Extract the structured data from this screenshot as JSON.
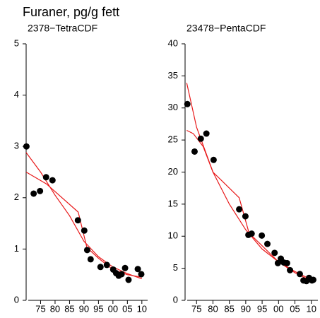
{
  "title": "Furaner, pg/g fett",
  "chart_data": [
    {
      "type": "scatter",
      "title": "2378−TetraCDF",
      "color": "#000000",
      "x": [
        1970.1,
        1972.6,
        1974.8,
        1976.9,
        1979.1,
        1987.9,
        1990.1,
        1991.1,
        1992.3,
        1995.7,
        1997.9,
        2000.1,
        2001.1,
        2002.0,
        2003.0,
        2004.2,
        2005.4,
        2008.6,
        2009.8
      ],
      "values": [
        3.0,
        2.08,
        2.13,
        2.4,
        2.34,
        1.56,
        1.36,
        0.98,
        0.8,
        0.65,
        0.69,
        0.6,
        0.53,
        0.48,
        0.51,
        0.63,
        0.4,
        0.61,
        0.51
      ],
      "lines": [
        {
          "color": "#e8191a",
          "x": [
            1970,
            1975,
            1980,
            1985,
            1990,
            1995,
            2000,
            2005,
            2010
          ],
          "values": [
            2.88,
            2.5,
            2.05,
            1.65,
            1.15,
            0.85,
            0.65,
            0.52,
            0.42
          ]
        },
        {
          "color": "#e8191a",
          "x": [
            1970,
            1977,
            1988,
            1991,
            1995,
            2000,
            2005,
            2010
          ],
          "values": [
            2.5,
            2.27,
            1.72,
            1.03,
            0.82,
            0.6,
            0.5,
            0.45
          ]
        }
      ],
      "xlim": [
        1970,
        2012
      ],
      "ylim": [
        0,
        5
      ],
      "xticks": [
        {
          "value": 1975,
          "label": "75"
        },
        {
          "value": 1980,
          "label": "80"
        },
        {
          "value": 1985,
          "label": "85"
        },
        {
          "value": 1990,
          "label": "90"
        },
        {
          "value": 1995,
          "label": "95"
        },
        {
          "value": 2000,
          "label": "00"
        },
        {
          "value": 2005,
          "label": "05"
        },
        {
          "value": 2010,
          "label": "10"
        }
      ],
      "yticks": [
        0,
        1,
        2,
        3,
        4,
        5
      ]
    },
    {
      "type": "scatter",
      "title": "23478−PentaCDF",
      "color": "#000000",
      "x": [
        1972.2,
        1974.4,
        1976.3,
        1978.0,
        1980.2,
        1988.0,
        1989.9,
        1990.8,
        1991.8,
        1994.9,
        1996.6,
        1998.8,
        1999.8,
        2000.7,
        2001.6,
        2002.6,
        2003.5,
        2006.5,
        2007.6,
        2008.5,
        2009.3,
        2010.2,
        2010.6
      ],
      "values": [
        30.6,
        23.2,
        25.2,
        26.0,
        21.9,
        14.2,
        13.1,
        10.2,
        10.4,
        10.1,
        8.8,
        7.4,
        5.8,
        6.5,
        5.9,
        5.8,
        4.7,
        4.1,
        3.1,
        3.0,
        3.5,
        3.1,
        3.2
      ],
      "lines": [
        {
          "color": "#e8191a",
          "x": [
            1972,
            1975,
            1980,
            1985,
            1990,
            1995,
            2000,
            2005,
            2010
          ],
          "values": [
            33.9,
            27,
            20,
            15,
            11,
            8,
            6,
            4.5,
            3.2
          ]
        },
        {
          "color": "#e8191a",
          "x": [
            1972,
            1974,
            1977,
            1980,
            1988,
            1991,
            1995,
            2000,
            2005,
            2010
          ],
          "values": [
            26.5,
            26,
            24,
            20,
            16,
            10.5,
            8.5,
            6,
            4.3,
            3
          ]
        }
      ],
      "xlim": [
        1971.5,
        2012
      ],
      "ylim": [
        0,
        40
      ],
      "xticks": [
        {
          "value": 1975,
          "label": "75"
        },
        {
          "value": 1980,
          "label": "80"
        },
        {
          "value": 1985,
          "label": "85"
        },
        {
          "value": 1990,
          "label": "90"
        },
        {
          "value": 1995,
          "label": "95"
        },
        {
          "value": 2000,
          "label": "00"
        },
        {
          "value": 2005,
          "label": "05"
        },
        {
          "value": 2010,
          "label": "10"
        }
      ],
      "yticks": [
        0,
        5,
        10,
        15,
        20,
        25,
        30,
        35,
        40
      ]
    }
  ]
}
